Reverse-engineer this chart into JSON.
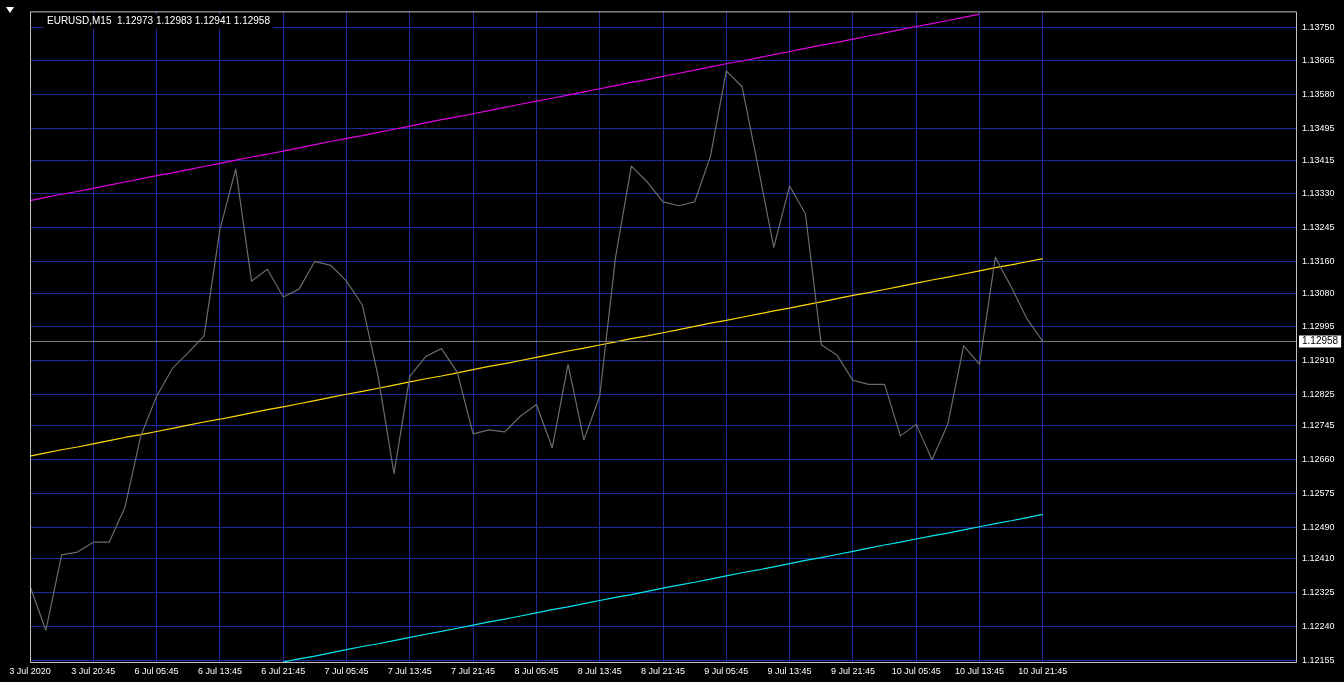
{
  "chart_data": {
    "type": "line",
    "title": "EURUSD,M15  1.12973 1.12983 1.12941 1.12958",
    "marker": "none",
    "legend": false,
    "grid": true,
    "categories": [
      "3 Jul 2020",
      null,
      null,
      null,
      "3 Jul 20:45",
      null,
      null,
      null,
      "6 Jul 05:45",
      null,
      null,
      null,
      "6 Jul 13:45",
      null,
      null,
      null,
      "6 Jul 21:45",
      null,
      null,
      null,
      "7 Jul 05:45",
      null,
      null,
      null,
      "7 Jul 13:45",
      null,
      null,
      null,
      "7 Jul 21:45",
      null,
      null,
      null,
      "8 Jul 05:45",
      null,
      null,
      null,
      "8 Jul 13:45",
      null,
      null,
      null,
      "8 Jul 21:45",
      null,
      null,
      null,
      "9 Jul 05:45",
      null,
      null,
      null,
      "9 Jul 13:45",
      null,
      null,
      null,
      "9 Jul 21:45",
      null,
      null,
      null,
      "10 Jul 05:45",
      null,
      null,
      null,
      "10 Jul 13:45",
      null,
      null,
      null,
      "10 Jul 21:45",
      null,
      null,
      null,
      null,
      null,
      null,
      null,
      null,
      null,
      null,
      null,
      null,
      null,
      null,
      null,
      null
    ],
    "ylim": [
      1.1215,
      1.1379
    ],
    "yticks": [
      {
        "value": 1.12155,
        "label": "1.12155"
      },
      {
        "value": 1.1224,
        "label": "1.12240"
      },
      {
        "value": 1.12325,
        "label": "1.12325"
      },
      {
        "value": 1.1241,
        "label": "1.12410"
      },
      {
        "value": 1.1249,
        "label": "1.12490"
      },
      {
        "value": 1.12575,
        "label": "1.12575"
      },
      {
        "value": 1.1266,
        "label": "1.12660"
      },
      {
        "value": 1.12745,
        "label": "1.12745"
      },
      {
        "value": 1.12825,
        "label": "1.12825"
      },
      {
        "value": 1.1291,
        "label": "1.12910"
      },
      {
        "value": 1.12995,
        "label": "1.12995"
      },
      {
        "value": 1.1308,
        "label": "1.13080"
      },
      {
        "value": 1.1316,
        "label": "1.13160"
      },
      {
        "value": 1.13245,
        "label": "1.13245"
      },
      {
        "value": 1.1333,
        "label": "1.13330"
      },
      {
        "value": 1.13415,
        "label": "1.13415"
      },
      {
        "value": 1.13495,
        "label": "1.13495"
      },
      {
        "value": 1.1358,
        "label": "1.13580"
      },
      {
        "value": 1.13665,
        "label": "1.13665"
      },
      {
        "value": 1.1375,
        "label": "1.13750"
      }
    ],
    "ref_lines": [
      {
        "axis": "y",
        "value": 1.12958,
        "label": "1.12958",
        "color": "#7f7f7f"
      }
    ],
    "series": [
      {
        "color": "#6a6a6a",
        "values": [
          1.12341,
          1.1223,
          1.1242,
          1.12427,
          1.12452,
          1.12452,
          1.1254,
          1.1272,
          1.1282,
          1.1289,
          1.1293,
          1.12972,
          1.1324,
          1.13393,
          1.1311,
          1.1314,
          1.1307,
          1.1309,
          1.1316,
          1.1315,
          1.1311,
          1.1305,
          1.1287,
          1.12625,
          1.1287,
          1.1292,
          1.1294,
          1.1288,
          1.12725,
          1.12735,
          1.1273,
          1.1277,
          1.12799,
          1.1269,
          1.129,
          1.1271,
          1.1282,
          1.1317,
          1.134,
          1.1336,
          1.1331,
          1.133,
          1.1331,
          1.13425,
          1.1364,
          1.136,
          1.134,
          1.13195,
          1.1335,
          1.1328,
          1.1295,
          1.12923,
          1.1286,
          1.1285,
          1.1285,
          1.1272,
          1.12749,
          1.1266,
          1.1275,
          1.12947,
          1.129,
          1.1317,
          1.13096,
          1.13015,
          1.12958,
          null,
          null,
          null,
          null,
          null,
          null,
          null,
          null,
          null,
          null,
          null,
          null,
          null,
          null,
          null,
          null
        ]
      },
      {
        "color": "#e000e0",
        "values": [
          1.13313,
          1.13321,
          1.13329,
          1.13336,
          1.13344,
          1.13352,
          1.1336,
          1.13368,
          1.13376,
          1.13383,
          1.13391,
          1.13399,
          1.13407,
          1.13415,
          1.13423,
          1.1343,
          1.13438,
          1.13446,
          1.13454,
          1.13462,
          1.1347,
          1.13477,
          1.13485,
          1.13493,
          1.13501,
          1.13509,
          1.13517,
          1.13524,
          1.13532,
          1.1354,
          1.13548,
          1.13556,
          1.13564,
          1.13571,
          1.13579,
          1.13587,
          1.13595,
          1.13603,
          1.13611,
          1.13618,
          1.13626,
          1.13634,
          1.13642,
          1.1365,
          1.13658,
          1.13665,
          1.13673,
          1.13681,
          1.13689,
          1.13697,
          1.13705,
          1.13712,
          1.1372,
          1.13728,
          1.13736,
          1.13744,
          1.13752,
          1.13759,
          1.13767,
          1.13775,
          1.13783,
          null,
          null,
          null,
          null,
          null,
          null,
          null,
          null,
          null,
          null,
          null,
          null,
          null,
          null,
          null,
          null,
          null,
          null,
          null,
          null
        ]
      },
      {
        "color": "#ffd700",
        "values": [
          1.12669,
          1.12677,
          1.12685,
          1.12692,
          1.127,
          1.12708,
          1.12716,
          1.12723,
          1.12731,
          1.12739,
          1.12747,
          1.12755,
          1.12762,
          1.1277,
          1.12778,
          1.12786,
          1.12793,
          1.12801,
          1.12809,
          1.12817,
          1.12825,
          1.12832,
          1.1284,
          1.12848,
          1.12856,
          1.12864,
          1.12871,
          1.12879,
          1.12887,
          1.12895,
          1.12902,
          1.1291,
          1.12918,
          1.12926,
          1.12934,
          1.12941,
          1.12949,
          1.12957,
          1.12965,
          1.12972,
          1.1298,
          1.12988,
          1.12996,
          1.13004,
          1.13011,
          1.13019,
          1.13027,
          1.13035,
          1.13042,
          1.1305,
          1.13058,
          1.13066,
          1.13074,
          1.13081,
          1.13089,
          1.13097,
          1.13105,
          1.13113,
          1.1312,
          1.13128,
          1.13136,
          1.13144,
          1.13151,
          1.13159,
          1.13167,
          null,
          null,
          null,
          null,
          null,
          null,
          null,
          null,
          null,
          null,
          null,
          null,
          null,
          null,
          null,
          null
        ]
      },
      {
        "color": "#00e5ee",
        "values": [
          null,
          null,
          null,
          null,
          null,
          null,
          null,
          null,
          null,
          null,
          null,
          null,
          null,
          null,
          null,
          null,
          1.1215,
          1.12158,
          1.12165,
          1.12173,
          1.12181,
          1.12189,
          1.12196,
          1.12204,
          1.12212,
          1.1222,
          1.12227,
          1.12235,
          1.12243,
          1.12251,
          1.12258,
          1.12266,
          1.12274,
          1.12282,
          1.12289,
          1.12297,
          1.12305,
          1.12313,
          1.1232,
          1.12328,
          1.12336,
          1.12344,
          1.12351,
          1.12359,
          1.12367,
          1.12375,
          1.12382,
          1.1239,
          1.12398,
          1.12406,
          1.12413,
          1.12421,
          1.12429,
          1.12437,
          1.12445,
          1.12452,
          1.1246,
          1.12468,
          1.12475,
          1.12483,
          1.12491,
          1.12499,
          1.12506,
          1.12514,
          1.12522,
          null,
          null,
          null,
          null,
          null,
          null,
          null,
          null,
          null,
          null,
          null,
          null,
          null,
          null,
          null,
          null
        ]
      }
    ]
  }
}
